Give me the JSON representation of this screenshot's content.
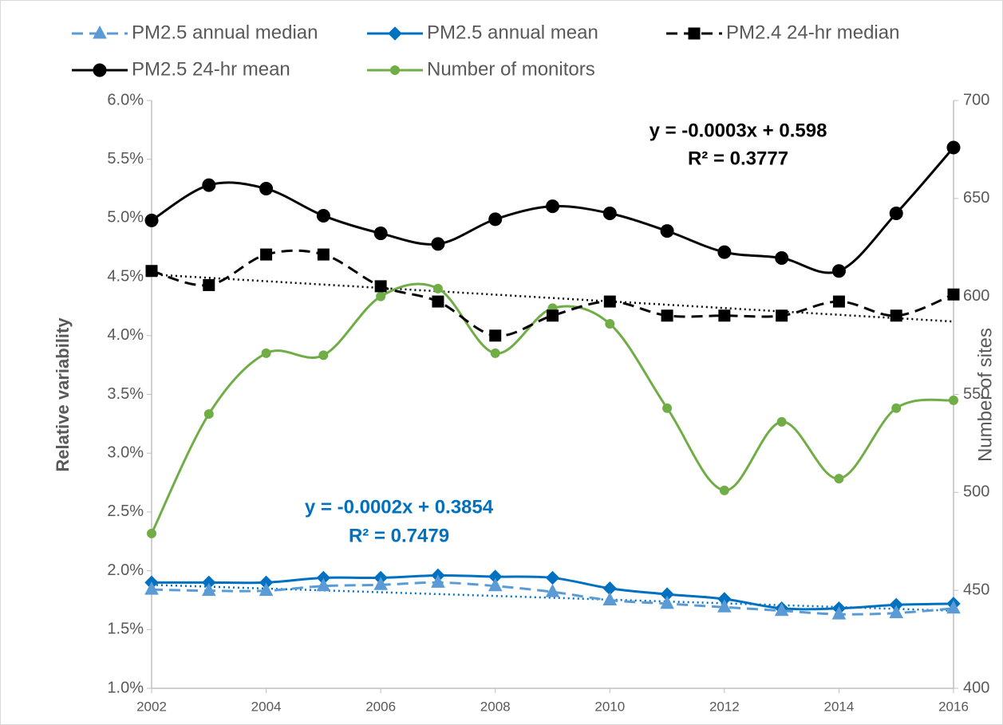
{
  "chart_data": {
    "type": "line",
    "x": [
      2002,
      2003,
      2004,
      2005,
      2006,
      2007,
      2008,
      2009,
      2010,
      2011,
      2012,
      2013,
      2014,
      2015,
      2016
    ],
    "xlim": [
      2002,
      2016
    ],
    "xticks": [
      2002,
      2004,
      2006,
      2008,
      2010,
      2012,
      2014,
      2016
    ],
    "ylim": [
      1.0,
      6.0
    ],
    "yticks": [
      {
        "value": 1.0,
        "label": "1.0%"
      },
      {
        "value": 1.5,
        "label": "1.5%"
      },
      {
        "value": 2.0,
        "label": "2.0%"
      },
      {
        "value": 2.5,
        "label": "2.5%"
      },
      {
        "value": 3.0,
        "label": "3.0%"
      },
      {
        "value": 3.5,
        "label": "3.5%"
      },
      {
        "value": 4.0,
        "label": "4.0%"
      },
      {
        "value": 4.5,
        "label": "4.5%"
      },
      {
        "value": 5.0,
        "label": "5.0%"
      },
      {
        "value": 5.5,
        "label": "5.5%"
      },
      {
        "value": 6.0,
        "label": "6.0%"
      }
    ],
    "y2lim": [
      400,
      700
    ],
    "y2ticks": [
      400,
      450,
      500,
      550,
      600,
      650,
      700
    ],
    "ylabel": "Relative variability",
    "y2label": "Number of sites",
    "smooth": true,
    "series": [
      {
        "name": "PM2.5 annual median",
        "color": "#5b9bd5",
        "line_style": "dashed",
        "marker": "triangle",
        "values": [
          1.84,
          1.83,
          1.83,
          1.87,
          1.88,
          1.9,
          1.87,
          1.82,
          1.75,
          1.72,
          1.69,
          1.66,
          1.63,
          1.64,
          1.68
        ]
      },
      {
        "name": "PM2.5 annual mean",
        "color": "#0070c0",
        "line_style": "solid",
        "marker": "diamond",
        "values": [
          1.9,
          1.9,
          1.9,
          1.94,
          1.94,
          1.96,
          1.95,
          1.94,
          1.85,
          1.8,
          1.76,
          1.68,
          1.68,
          1.71,
          1.72
        ]
      },
      {
        "name": "PM2.4 24-hr median",
        "color": "#000000",
        "line_style": "dashed",
        "marker": "square",
        "values": [
          4.55,
          4.43,
          4.69,
          4.69,
          4.42,
          4.29,
          4.0,
          4.17,
          4.29,
          4.17,
          4.17,
          4.17,
          4.29,
          4.17,
          4.35
        ]
      },
      {
        "name": "PM2.5 24-hr mean",
        "color": "#000000",
        "line_style": "solid",
        "marker": "circle",
        "values": [
          4.98,
          5.28,
          5.25,
          5.02,
          4.87,
          4.78,
          4.99,
          5.1,
          5.04,
          4.89,
          4.71,
          4.66,
          4.55,
          5.04,
          5.6
        ]
      },
      {
        "name": "Number of monitors",
        "color": "#70ad47",
        "line_style": "solid",
        "marker": "small-circle",
        "axis": "y2",
        "values": [
          479,
          540,
          571,
          570,
          600,
          604,
          571,
          594,
          586,
          543,
          501,
          536,
          507,
          543,
          547
        ]
      }
    ],
    "trendlines": [
      {
        "equation": "y = -0.0003x + 0.598",
        "r_squared": "R² = 0.3777",
        "color": "#000000",
        "values": [
          4.52,
          4.12
        ]
      },
      {
        "equation": "y = -0.0002x + 0.3854",
        "r_squared": "R² = 0.7479",
        "color": "#0070c0",
        "values": [
          1.88,
          1.66
        ]
      }
    ]
  }
}
